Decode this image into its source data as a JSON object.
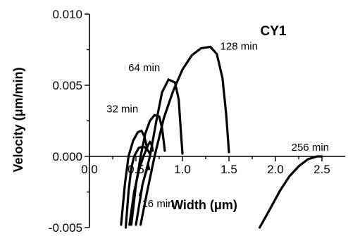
{
  "chart_data": {
    "type": "line",
    "title": "CY1",
    "xlabel": "Width (μm)",
    "ylabel": "Velocity (μm/min)",
    "xlim": [
      0.0,
      2.75
    ],
    "ylim": [
      -0.005,
      0.01
    ],
    "x_ticks": [
      {
        "value": 0.0,
        "label": "0.0"
      },
      {
        "value": 0.5,
        "label": "0.5"
      },
      {
        "value": 1.0,
        "label": "1.0"
      },
      {
        "value": 1.5,
        "label": "1.5"
      },
      {
        "value": 2.0,
        "label": "2.0"
      },
      {
        "value": 2.5,
        "label": "2.5"
      }
    ],
    "y_ticks": [
      {
        "value": 0.01,
        "label": "0.010"
      },
      {
        "value": 0.005,
        "label": "0.005"
      },
      {
        "value": 0.0,
        "label": "0.000"
      },
      {
        "value": -0.005,
        "label": "-0.005"
      }
    ],
    "grid": false,
    "legend": "none",
    "series": [
      {
        "name": "16 min",
        "points": [
          [
            0.43,
            -0.0048
          ],
          [
            0.48,
            -0.0025
          ],
          [
            0.53,
            -0.001
          ],
          [
            0.58,
            0.0
          ],
          [
            0.63,
            0.0008
          ],
          [
            0.65,
            0.001
          ],
          [
            0.67,
            0.0008
          ],
          [
            0.68,
            0.0004
          ]
        ]
      },
      {
        "name": "32 min",
        "points": [
          [
            0.45,
            -0.0048
          ],
          [
            0.5,
            -0.002
          ],
          [
            0.55,
            0.0
          ],
          [
            0.6,
            0.0016
          ],
          [
            0.65,
            0.0025
          ],
          [
            0.7,
            0.0029
          ],
          [
            0.75,
            0.0028
          ],
          [
            0.78,
            0.002
          ],
          [
            0.8,
            0.001
          ],
          [
            0.81,
            0.0004
          ]
        ]
      },
      {
        "name": "64 min",
        "points": [
          [
            0.5,
            -0.0048
          ],
          [
            0.57,
            -0.002
          ],
          [
            0.65,
            0.0
          ],
          [
            0.72,
            0.0025
          ],
          [
            0.78,
            0.0045
          ],
          [
            0.85,
            0.0054
          ],
          [
            0.92,
            0.0052
          ],
          [
            0.96,
            0.004
          ],
          [
            0.98,
            0.002
          ],
          [
            1.0,
            0.0002
          ]
        ]
      },
      {
        "name": "128 min",
        "points": [
          [
            0.55,
            -0.0048
          ],
          [
            0.62,
            -0.0025
          ],
          [
            0.7,
            0.0
          ],
          [
            0.8,
            0.0027
          ],
          [
            0.9,
            0.0046
          ],
          [
            1.0,
            0.0061
          ],
          [
            1.1,
            0.0071
          ],
          [
            1.2,
            0.0076
          ],
          [
            1.3,
            0.0077
          ],
          [
            1.37,
            0.0072
          ],
          [
            1.43,
            0.0055
          ],
          [
            1.47,
            0.003
          ],
          [
            1.5,
            0.0003
          ]
        ]
      },
      {
        "name": "256 min",
        "points": [
          [
            1.83,
            -0.005
          ],
          [
            1.95,
            -0.0036
          ],
          [
            2.05,
            -0.0024
          ],
          [
            2.15,
            -0.0014
          ],
          [
            2.25,
            -0.0007
          ],
          [
            2.35,
            -0.0002
          ],
          [
            2.45,
            0.0
          ],
          [
            2.5,
            0.0
          ]
        ]
      },
      {
        "name": "",
        "points": [
          [
            0.39,
            -0.005
          ],
          [
            0.42,
            -0.0025
          ],
          [
            0.45,
            -0.0008
          ],
          [
            0.48,
            0.0
          ],
          [
            0.53,
            0.0006
          ],
          [
            0.58,
            0.0007
          ],
          [
            0.62,
            0.0005
          ],
          [
            0.65,
            0.0002
          ]
        ]
      },
      {
        "name": "",
        "points": [
          [
            0.34,
            -0.0048
          ],
          [
            0.38,
            -0.002
          ],
          [
            0.42,
            0.0
          ],
          [
            0.47,
            0.0011
          ],
          [
            0.52,
            0.0017
          ],
          [
            0.56,
            0.0018
          ],
          [
            0.59,
            0.0014
          ],
          [
            0.62,
            0.0006
          ]
        ]
      }
    ],
    "annotations": [
      {
        "text": "16 min",
        "target": [
          0.64,
          -0.0005
        ]
      }
    ]
  }
}
